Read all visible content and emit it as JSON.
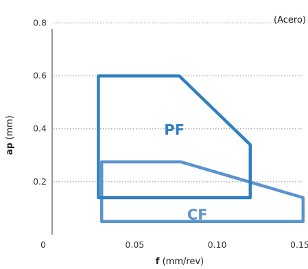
{
  "chart_data": {
    "type": "area",
    "note": "(Acero)",
    "xlabel": {
      "main": "f",
      "unit": "(mm/rev)"
    },
    "ylabel": {
      "main": "ap",
      "unit": "(mm)"
    },
    "x_ticks": [
      0,
      0.05,
      0.1,
      0.15
    ],
    "x_tick_labels": [
      "0",
      "0.05",
      "0.10",
      "0.15"
    ],
    "y_ticks": [
      0.2,
      0.4,
      0.6,
      0.8
    ],
    "y_tick_labels": [
      "0.2",
      "0.4",
      "0.6",
      "0.8"
    ],
    "xlim": [
      0,
      0.155
    ],
    "ylim": [
      0,
      0.84
    ],
    "grid": "horizontal dotted",
    "regions": [
      {
        "name": "PF",
        "color": "#2f7fc1",
        "points": [
          [
            0.028,
            0.14
          ],
          [
            0.028,
            0.6
          ],
          [
            0.077,
            0.6
          ],
          [
            0.12,
            0.34
          ],
          [
            0.12,
            0.14
          ]
        ]
      },
      {
        "name": "CF",
        "color": "#5a93ce",
        "points": [
          [
            0.03,
            0.05
          ],
          [
            0.03,
            0.275
          ],
          [
            0.078,
            0.275
          ],
          [
            0.152,
            0.14
          ],
          [
            0.152,
            0.05
          ]
        ]
      }
    ]
  }
}
